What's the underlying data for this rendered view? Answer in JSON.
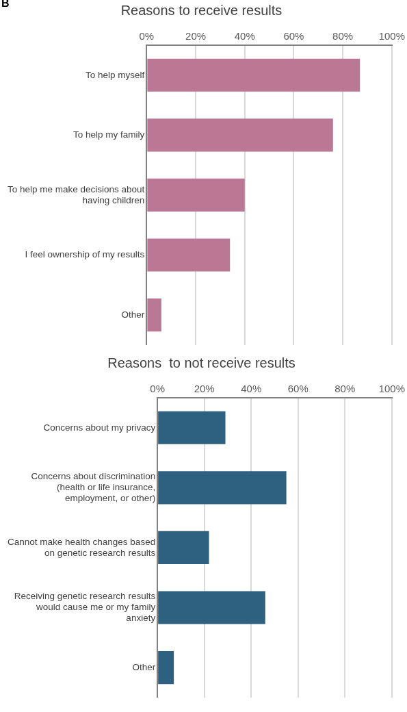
{
  "chart_data": [
    {
      "type": "bar",
      "orientation": "horizontal",
      "title": "Reasons to receive results",
      "annotations": [
        "B"
      ],
      "categories": [
        "To help myself",
        "To help my family",
        "To help me make decisions about having children",
        "I feel ownership of my results",
        "Other"
      ],
      "values": [
        87,
        76,
        40,
        34,
        6
      ],
      "color": "#bb7895",
      "xlim": [
        0,
        100
      ],
      "xticks": [
        {
          "value": 0,
          "label": "0%"
        },
        {
          "value": 20,
          "label": "20%"
        },
        {
          "value": 40,
          "label": "40%"
        },
        {
          "value": 60,
          "label": "60%"
        },
        {
          "value": 80,
          "label": "80%"
        },
        {
          "value": 100,
          "label": "100%"
        }
      ],
      "grid": "x"
    },
    {
      "type": "bar",
      "orientation": "horizontal",
      "title": "Reasons  to not receive results",
      "categories": [
        "Concerns about my privacy",
        "Concerns about discrimination (health or life insurance, employment, or other)",
        "Cannot make health changes based on genetic research results",
        "Receiving genetic research results would cause me or my family anxiety",
        "Other"
      ],
      "values": [
        29,
        55,
        22,
        46,
        7
      ],
      "color": "#2e6080",
      "xlim": [
        0,
        100
      ],
      "xticks": [
        {
          "value": 0,
          "label": "0%"
        },
        {
          "value": 20,
          "label": "20%"
        },
        {
          "value": 40,
          "label": "40%"
        },
        {
          "value": 60,
          "label": "60%"
        },
        {
          "value": 80,
          "label": "80%"
        },
        {
          "value": 100,
          "label": "100%"
        }
      ],
      "grid": "x"
    }
  ]
}
